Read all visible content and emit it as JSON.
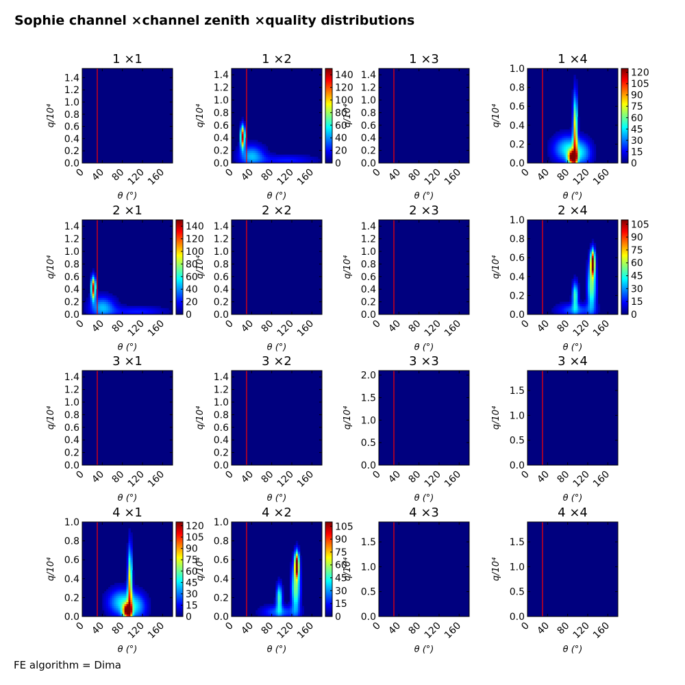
{
  "title": "Sophie channel ×channel zenith ×quality distributions",
  "footnote": "FE algorithm = Dima",
  "colors": {
    "background": "#00007f",
    "cut_line": "#ff0000",
    "colormap": [
      "#00007f",
      "#0000ff",
      "#0080ff",
      "#00ffff",
      "#80ff80",
      "#ffff00",
      "#ff8000",
      "#ff0000",
      "#7f0000"
    ]
  },
  "shared": {
    "xlabel": "θ (°)",
    "ylabel": "q/10⁴",
    "xlim": [
      0,
      180
    ],
    "xticks": [
      0,
      40,
      80,
      120,
      160
    ],
    "cut_theta": 30
  },
  "chart_data": [
    {
      "type": "heatmap",
      "title": "1 ×1",
      "row": 0,
      "col": 0,
      "ylim": [
        0,
        1.55
      ],
      "yticks": [
        "0.0",
        "0.2",
        "0.4",
        "0.6",
        "0.8",
        "1.0",
        "1.2",
        "1.4"
      ],
      "colorbar": null,
      "blobs": []
    },
    {
      "type": "heatmap",
      "title": "1 ×2",
      "row": 0,
      "col": 1,
      "ylim": [
        0,
        1.5
      ],
      "yticks": [
        "0.0",
        "0.2",
        "0.4",
        "0.6",
        "0.8",
        "1.0",
        "1.2",
        "1.4"
      ],
      "colorbar": {
        "max": 150,
        "ticks": [
          "0",
          "20",
          "40",
          "60",
          "80",
          "100",
          "120",
          "140"
        ]
      },
      "blobs": [
        {
          "theta": 22,
          "q": 0.42,
          "s_theta": 3,
          "s_q": 0.12,
          "peak": 140
        },
        {
          "theta": 40,
          "q": 0.12,
          "s_theta": 18,
          "s_q": 0.12,
          "peak": 45
        },
        {
          "theta": 110,
          "q": 0.05,
          "s_theta": 40,
          "s_q": 0.06,
          "peak": 22
        }
      ]
    },
    {
      "type": "heatmap",
      "title": "1 ×3",
      "row": 0,
      "col": 2,
      "ylim": [
        0,
        1.5
      ],
      "yticks": [
        "0.0",
        "0.2",
        "0.4",
        "0.6",
        "0.8",
        "1.0",
        "1.2",
        "1.4"
      ],
      "colorbar": null,
      "blobs": []
    },
    {
      "type": "heatmap",
      "title": "1 ×4",
      "row": 0,
      "col": 3,
      "ylim": [
        0,
        1.0
      ],
      "yticks": [
        "0.0",
        "0.2",
        "0.4",
        "0.6",
        "0.8",
        "1.0"
      ],
      "colorbar": {
        "max": 125,
        "ticks": [
          "0",
          "15",
          "30",
          "45",
          "60",
          "75",
          "90",
          "105",
          "120"
        ]
      },
      "blobs": [
        {
          "theta": 90,
          "q": 0.06,
          "s_theta": 6,
          "s_q": 0.05,
          "peak": 125
        },
        {
          "theta": 95,
          "q": 0.35,
          "s_theta": 3,
          "s_q": 0.25,
          "peak": 85
        },
        {
          "theta": 80,
          "q": 0.15,
          "s_theta": 20,
          "s_q": 0.1,
          "peak": 45
        },
        {
          "theta": 110,
          "q": 0.1,
          "s_theta": 14,
          "s_q": 0.1,
          "peak": 28
        }
      ]
    },
    {
      "type": "heatmap",
      "title": "2 ×1",
      "row": 1,
      "col": 0,
      "ylim": [
        0,
        1.5
      ],
      "yticks": [
        "0.0",
        "0.2",
        "0.4",
        "0.6",
        "0.8",
        "1.0",
        "1.2",
        "1.4"
      ],
      "colorbar": {
        "max": 150,
        "ticks": [
          "0",
          "20",
          "40",
          "60",
          "80",
          "100",
          "120",
          "140"
        ]
      },
      "blobs": [
        {
          "theta": 22,
          "q": 0.42,
          "s_theta": 3,
          "s_q": 0.12,
          "peak": 140
        },
        {
          "theta": 40,
          "q": 0.12,
          "s_theta": 18,
          "s_q": 0.12,
          "peak": 45
        },
        {
          "theta": 110,
          "q": 0.05,
          "s_theta": 40,
          "s_q": 0.06,
          "peak": 22
        }
      ]
    },
    {
      "type": "heatmap",
      "title": "2 ×2",
      "row": 1,
      "col": 1,
      "ylim": [
        0,
        1.5
      ],
      "yticks": [
        "0.0",
        "0.2",
        "0.4",
        "0.6",
        "0.8",
        "1.0",
        "1.2",
        "1.4"
      ],
      "colorbar": null,
      "blobs": []
    },
    {
      "type": "heatmap",
      "title": "2 ×3",
      "row": 1,
      "col": 2,
      "ylim": [
        0,
        1.5
      ],
      "yticks": [
        "0.0",
        "0.2",
        "0.4",
        "0.6",
        "0.8",
        "1.0",
        "1.2",
        "1.4"
      ],
      "colorbar": null,
      "blobs": []
    },
    {
      "type": "heatmap",
      "title": "2 ×4",
      "row": 1,
      "col": 3,
      "ylim": [
        0,
        1.0
      ],
      "yticks": [
        "0.0",
        "0.2",
        "0.4",
        "0.6",
        "0.8",
        "1.0"
      ],
      "colorbar": {
        "max": 110,
        "ticks": [
          "0",
          "15",
          "30",
          "45",
          "60",
          "75",
          "90",
          "105"
        ]
      },
      "blobs": [
        {
          "theta": 130,
          "q": 0.55,
          "s_theta": 3,
          "s_q": 0.09,
          "peak": 110
        },
        {
          "theta": 128,
          "q": 0.3,
          "s_theta": 6,
          "s_q": 0.18,
          "peak": 55
        },
        {
          "theta": 95,
          "q": 0.2,
          "s_theta": 4,
          "s_q": 0.1,
          "peak": 50
        },
        {
          "theta": 95,
          "q": 0.05,
          "s_theta": 25,
          "s_q": 0.05,
          "peak": 25
        }
      ]
    },
    {
      "type": "heatmap",
      "title": "3 ×1",
      "row": 2,
      "col": 0,
      "ylim": [
        0,
        1.5
      ],
      "yticks": [
        "0.0",
        "0.2",
        "0.4",
        "0.6",
        "0.8",
        "1.0",
        "1.2",
        "1.4"
      ],
      "colorbar": null,
      "blobs": []
    },
    {
      "type": "heatmap",
      "title": "3 ×2",
      "row": 2,
      "col": 1,
      "ylim": [
        0,
        1.5
      ],
      "yticks": [
        "0.0",
        "0.2",
        "0.4",
        "0.6",
        "0.8",
        "1.0",
        "1.2",
        "1.4"
      ],
      "colorbar": null,
      "blobs": []
    },
    {
      "type": "heatmap",
      "title": "3 ×3",
      "row": 2,
      "col": 2,
      "ylim": [
        0,
        2.1
      ],
      "yticks": [
        "0.0",
        "0.5",
        "1.0",
        "1.5",
        "2.0"
      ],
      "colorbar": null,
      "blobs": []
    },
    {
      "type": "heatmap",
      "title": "3 ×4",
      "row": 2,
      "col": 3,
      "ylim": [
        0,
        1.9
      ],
      "yticks": [
        "0.0",
        "0.5",
        "1.0",
        "1.5"
      ],
      "colorbar": null,
      "blobs": []
    },
    {
      "type": "heatmap",
      "title": "4 ×1",
      "row": 3,
      "col": 0,
      "ylim": [
        0,
        1.0
      ],
      "yticks": [
        "0.0",
        "0.2",
        "0.4",
        "0.6",
        "0.8",
        "1.0"
      ],
      "colorbar": {
        "max": 125,
        "ticks": [
          "0",
          "15",
          "30",
          "45",
          "60",
          "75",
          "90",
          "105",
          "120"
        ]
      },
      "blobs": [
        {
          "theta": 90,
          "q": 0.06,
          "s_theta": 6,
          "s_q": 0.05,
          "peak": 125
        },
        {
          "theta": 95,
          "q": 0.35,
          "s_theta": 3,
          "s_q": 0.25,
          "peak": 85
        },
        {
          "theta": 80,
          "q": 0.15,
          "s_theta": 20,
          "s_q": 0.1,
          "peak": 45
        },
        {
          "theta": 110,
          "q": 0.1,
          "s_theta": 14,
          "s_q": 0.1,
          "peak": 28
        }
      ]
    },
    {
      "type": "heatmap",
      "title": "4 ×2",
      "row": 3,
      "col": 1,
      "ylim": [
        0,
        1.0
      ],
      "yticks": [
        "0.0",
        "0.2",
        "0.4",
        "0.6",
        "0.8",
        "1.0"
      ],
      "colorbar": {
        "max": 110,
        "ticks": [
          "0",
          "15",
          "30",
          "45",
          "60",
          "75",
          "90",
          "105"
        ]
      },
      "blobs": [
        {
          "theta": 130,
          "q": 0.55,
          "s_theta": 3,
          "s_q": 0.09,
          "peak": 110
        },
        {
          "theta": 128,
          "q": 0.3,
          "s_theta": 6,
          "s_q": 0.18,
          "peak": 55
        },
        {
          "theta": 95,
          "q": 0.2,
          "s_theta": 4,
          "s_q": 0.1,
          "peak": 50
        },
        {
          "theta": 95,
          "q": 0.05,
          "s_theta": 25,
          "s_q": 0.05,
          "peak": 25
        }
      ]
    },
    {
      "type": "heatmap",
      "title": "4 ×3",
      "row": 3,
      "col": 2,
      "ylim": [
        0,
        1.9
      ],
      "yticks": [
        "0.0",
        "0.5",
        "1.0",
        "1.5"
      ],
      "colorbar": null,
      "blobs": []
    },
    {
      "type": "heatmap",
      "title": "4 ×4",
      "row": 3,
      "col": 3,
      "ylim": [
        0,
        1.9
      ],
      "yticks": [
        "0.0",
        "0.5",
        "1.0",
        "1.5"
      ],
      "colorbar": null,
      "blobs": []
    }
  ]
}
